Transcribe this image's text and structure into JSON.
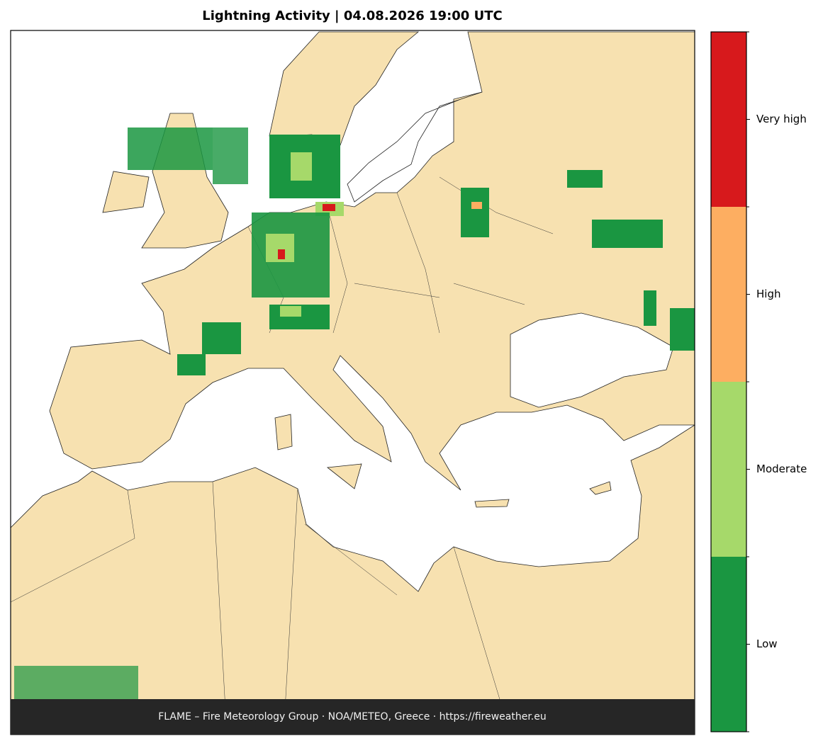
{
  "title": "Lightning Activity  |  04.08.2026 19:00 UTC",
  "colorbar": {
    "labels": [
      "Low",
      "Moderate",
      "High",
      "Very high"
    ],
    "colors": [
      "#1a9641",
      "#a6d96a",
      "#fdae61",
      "#d7191c"
    ]
  },
  "footer": "FLAME – Fire Meteorology Group · NOA/METEO, Greece · https://fireweather.eu"
}
